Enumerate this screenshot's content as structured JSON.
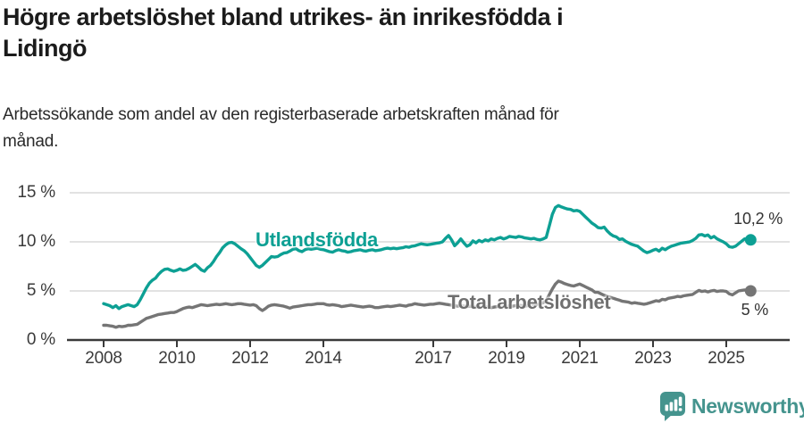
{
  "title": {
    "lines": [
      "Högre arbetslöshet bland utrikes- än inrikesfödda i",
      "Lidingö"
    ]
  },
  "subtitle": {
    "lines": [
      "Arbetssökande som andel av den registerbaserade arbetskraften månad för",
      "månad."
    ]
  },
  "footer": {
    "brand": "Newsworthy",
    "logo_icon": "newsworthy-bubble-barchart-icon",
    "brand_color": "#45948e"
  },
  "chart_data": {
    "type": "line",
    "unit": "%",
    "title": "Högre arbetslöshet bland utrikes- än inrikesfödda i Lidingö",
    "subtitle": "Arbetssökande som andel av den registerbaserade arbetskraften månad för månad.",
    "x_start_year": 2008,
    "x_step_years": 0.083333,
    "xlim": [
      2008,
      2025.75
    ],
    "ylim": [
      0,
      15
    ],
    "grid": "horizontal",
    "colors": {
      "axis": "#3a3a3a",
      "gridline": "#d9d9d9",
      "annotation": "#333333"
    },
    "x_tick_labels": [
      "2008",
      "2010",
      "2012",
      "2014",
      "2017",
      "2019",
      "2021",
      "2023",
      "2025"
    ],
    "x_tick_years": [
      2008,
      2010,
      2012,
      2014,
      2017,
      2019,
      2021,
      2023,
      2025
    ],
    "y_ticks": [
      {
        "value": 0,
        "label": "0 %"
      },
      {
        "value": 5,
        "label": "5 %"
      },
      {
        "value": 10,
        "label": "10 %"
      },
      {
        "value": 15,
        "label": "15 %"
      }
    ],
    "series": [
      {
        "name": "Utlandsfödda",
        "color": "#0da094",
        "end_label": "10,2 %",
        "end_value": 10.2,
        "values": [
          3.7,
          3.6,
          3.5,
          3.3,
          3.5,
          3.2,
          3.4,
          3.5,
          3.6,
          3.5,
          3.4,
          3.6,
          4.1,
          4.7,
          5.3,
          5.8,
          6.1,
          6.3,
          6.7,
          7.0,
          7.2,
          7.25,
          7.1,
          7.0,
          7.1,
          7.25,
          7.1,
          7.15,
          7.3,
          7.5,
          7.7,
          7.45,
          7.15,
          7.0,
          7.35,
          7.6,
          8.0,
          8.5,
          8.9,
          9.4,
          9.7,
          9.9,
          9.95,
          9.8,
          9.55,
          9.3,
          9.1,
          8.8,
          8.4,
          8.0,
          7.6,
          7.4,
          7.6,
          7.9,
          8.2,
          8.5,
          8.45,
          8.5,
          8.7,
          8.85,
          8.9,
          9.05,
          9.25,
          9.3,
          9.1,
          9.0,
          9.2,
          9.3,
          9.25,
          9.3,
          9.35,
          9.25,
          9.2,
          9.1,
          9.0,
          8.95,
          9.1,
          9.2,
          9.1,
          9.05,
          8.95,
          9.0,
          9.1,
          9.15,
          9.2,
          9.1,
          9.05,
          9.15,
          9.2,
          9.1,
          9.15,
          9.2,
          9.3,
          9.35,
          9.3,
          9.35,
          9.3,
          9.35,
          9.4,
          9.5,
          9.45,
          9.55,
          9.6,
          9.7,
          9.8,
          9.75,
          9.7,
          9.75,
          9.8,
          9.85,
          9.9,
          10.0,
          10.35,
          10.65,
          10.2,
          9.6,
          9.9,
          10.3,
          9.9,
          9.55,
          9.7,
          10.1,
          9.9,
          10.15,
          10.0,
          10.2,
          10.1,
          10.3,
          10.2,
          10.35,
          10.45,
          10.3,
          10.4,
          10.55,
          10.5,
          10.45,
          10.55,
          10.5,
          10.4,
          10.35,
          10.3,
          10.35,
          10.25,
          10.2,
          10.3,
          10.45,
          11.6,
          12.8,
          13.5,
          13.7,
          13.55,
          13.45,
          13.35,
          13.3,
          13.15,
          13.2,
          13.1,
          12.8,
          12.5,
          12.2,
          11.9,
          11.7,
          11.45,
          11.4,
          11.5,
          11.1,
          10.8,
          10.6,
          10.5,
          10.25,
          10.3,
          10.05,
          9.9,
          9.75,
          9.65,
          9.55,
          9.3,
          9.05,
          8.9,
          9.0,
          9.15,
          9.25,
          9.05,
          9.35,
          9.2,
          9.4,
          9.55,
          9.65,
          9.75,
          9.85,
          9.9,
          9.95,
          10.0,
          10.15,
          10.35,
          10.7,
          10.75,
          10.6,
          10.7,
          10.4,
          10.55,
          10.3,
          10.15,
          10.0,
          9.8,
          9.5,
          9.45,
          9.55,
          9.8,
          10.05,
          10.3,
          10.25,
          10.2
        ]
      },
      {
        "name": "Total arbetslöshet",
        "color": "#757575",
        "end_label": "5 %",
        "end_value": 5,
        "values": [
          1.5,
          1.5,
          1.45,
          1.4,
          1.3,
          1.4,
          1.35,
          1.4,
          1.5,
          1.5,
          1.55,
          1.6,
          1.8,
          2.0,
          2.2,
          2.3,
          2.4,
          2.5,
          2.6,
          2.65,
          2.7,
          2.75,
          2.8,
          2.8,
          2.9,
          3.05,
          3.2,
          3.3,
          3.35,
          3.3,
          3.4,
          3.5,
          3.6,
          3.55,
          3.5,
          3.55,
          3.6,
          3.65,
          3.6,
          3.65,
          3.7,
          3.65,
          3.6,
          3.65,
          3.7,
          3.7,
          3.65,
          3.6,
          3.55,
          3.6,
          3.5,
          3.2,
          3.0,
          3.2,
          3.45,
          3.55,
          3.6,
          3.55,
          3.5,
          3.45,
          3.35,
          3.25,
          3.35,
          3.4,
          3.45,
          3.5,
          3.55,
          3.6,
          3.6,
          3.65,
          3.7,
          3.7,
          3.7,
          3.6,
          3.55,
          3.6,
          3.55,
          3.5,
          3.4,
          3.45,
          3.5,
          3.55,
          3.5,
          3.45,
          3.4,
          3.35,
          3.4,
          3.45,
          3.4,
          3.3,
          3.3,
          3.35,
          3.4,
          3.45,
          3.4,
          3.45,
          3.5,
          3.55,
          3.5,
          3.45,
          3.55,
          3.6,
          3.7,
          3.65,
          3.6,
          3.55,
          3.6,
          3.65,
          3.65,
          3.7,
          3.75,
          3.7,
          3.65,
          3.6,
          3.55,
          3.5,
          3.45,
          3.5,
          3.45,
          3.4,
          3.45,
          3.4,
          3.35,
          3.4,
          3.45,
          3.4,
          3.35,
          3.3,
          3.35,
          3.4,
          3.45,
          3.4,
          3.45,
          3.5,
          3.45,
          3.5,
          3.55,
          3.5,
          3.45,
          3.5,
          3.55,
          3.6,
          3.65,
          3.7,
          3.8,
          4.0,
          4.6,
          5.2,
          5.7,
          6.0,
          5.9,
          5.75,
          5.65,
          5.55,
          5.5,
          5.6,
          5.7,
          5.55,
          5.4,
          5.25,
          5.1,
          4.85,
          4.85,
          4.7,
          4.55,
          4.45,
          4.35,
          4.25,
          4.15,
          4.05,
          3.95,
          3.9,
          3.85,
          3.75,
          3.8,
          3.75,
          3.7,
          3.65,
          3.7,
          3.8,
          3.9,
          4.0,
          3.95,
          4.15,
          4.1,
          4.25,
          4.3,
          4.35,
          4.45,
          4.4,
          4.5,
          4.55,
          4.6,
          4.65,
          4.85,
          5.05,
          4.95,
          5.0,
          4.9,
          5.0,
          5.05,
          4.95,
          5.0,
          5.0,
          4.95,
          4.7,
          4.6,
          4.8,
          5.0,
          5.05,
          5.1,
          5.05,
          5.0
        ]
      }
    ]
  }
}
